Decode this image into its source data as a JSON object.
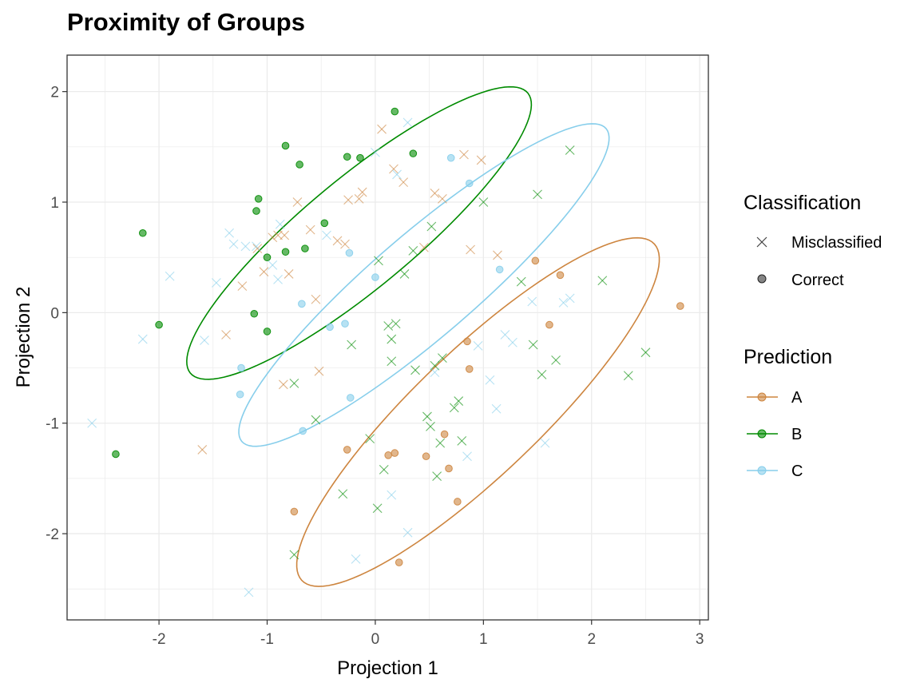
{
  "chart_data": {
    "type": "scatter",
    "title": "Proximity of Groups",
    "xlabel": "Projection 1",
    "ylabel": "Projection 2",
    "xlim": [
      -2.85,
      3.08
    ],
    "ylim": [
      -2.78,
      2.33
    ],
    "x_ticks": [
      -2,
      -1,
      0,
      1,
      2,
      3
    ],
    "y_ticks": [
      -2,
      -1,
      0,
      1,
      2
    ],
    "x_tick_labels": [
      "-2",
      "-1",
      "0",
      "1",
      "2",
      "3"
    ],
    "y_tick_labels": [
      "-2",
      "-1",
      "0",
      "1",
      "2"
    ],
    "grid": true,
    "legend_position": "right",
    "colors": {
      "A": "#CD853F",
      "B": "#008B00",
      "C": "#87CEEB"
    },
    "legends": {
      "classification": {
        "title": "Classification",
        "items": [
          "Misclassified",
          "Correct"
        ]
      },
      "prediction": {
        "title": "Prediction",
        "items": [
          "A",
          "B",
          "C"
        ]
      }
    },
    "ellipses": [
      {
        "group": "B",
        "center": [
          -0.15,
          0.72
        ],
        "rx": 2.01,
        "ry": 0.5,
        "angle": 39
      },
      {
        "group": "C",
        "center": [
          0.45,
          0.25
        ],
        "rx": 2.2,
        "ry": 0.47,
        "angle": 40
      },
      {
        "group": "A",
        "center": [
          0.95,
          -0.9
        ],
        "rx": 2.23,
        "ry": 0.57,
        "angle": 43
      }
    ],
    "series": [
      {
        "name": "Correct",
        "prediction": "B",
        "marker": "circle",
        "points": [
          [
            -2.15,
            0.72
          ],
          [
            -2.0,
            -0.11
          ],
          [
            -2.4,
            -1.28
          ],
          [
            -1.12,
            -0.01
          ],
          [
            -1.08,
            1.03
          ],
          [
            -1.1,
            0.92
          ],
          [
            -1.0,
            0.5
          ],
          [
            -1.0,
            -0.17
          ],
          [
            -0.83,
            1.51
          ],
          [
            -0.83,
            0.55
          ],
          [
            -0.7,
            1.34
          ],
          [
            -0.65,
            0.58
          ],
          [
            -0.47,
            0.81
          ],
          [
            -0.26,
            1.41
          ],
          [
            -0.14,
            1.4
          ],
          [
            0.18,
            1.82
          ],
          [
            0.35,
            1.44
          ]
        ]
      },
      {
        "name": "Correct",
        "prediction": "C",
        "marker": "circle",
        "points": [
          [
            -1.24,
            -0.5
          ],
          [
            -1.25,
            -0.74
          ],
          [
            -0.68,
            0.08
          ],
          [
            -0.67,
            -1.07
          ],
          [
            -0.42,
            -0.13
          ],
          [
            -0.28,
            -0.1
          ],
          [
            -0.24,
            0.54
          ],
          [
            -0.23,
            -0.77
          ],
          [
            0.0,
            0.32
          ],
          [
            0.7,
            1.4
          ],
          [
            0.87,
            1.17
          ],
          [
            1.15,
            0.39
          ]
        ]
      },
      {
        "name": "Correct",
        "prediction": "A",
        "marker": "circle",
        "points": [
          [
            -0.75,
            -1.8
          ],
          [
            -0.26,
            -1.24
          ],
          [
            0.12,
            -1.29
          ],
          [
            0.18,
            -1.27
          ],
          [
            0.22,
            -2.26
          ],
          [
            0.47,
            -1.3
          ],
          [
            0.64,
            -1.1
          ],
          [
            0.68,
            -1.41
          ],
          [
            0.76,
            -1.71
          ],
          [
            0.85,
            -0.26
          ],
          [
            0.87,
            -0.51
          ],
          [
            1.48,
            0.47
          ],
          [
            1.61,
            -0.11
          ],
          [
            1.71,
            0.34
          ],
          [
            2.82,
            0.06
          ]
        ]
      },
      {
        "name": "Misclassified",
        "prediction": "A",
        "marker": "x",
        "points": [
          [
            -1.6,
            -1.24
          ],
          [
            -1.38,
            -0.2
          ],
          [
            -1.23,
            0.24
          ],
          [
            -1.09,
            0.58
          ],
          [
            -1.03,
            0.37
          ],
          [
            -0.95,
            0.68
          ],
          [
            -0.9,
            0.7
          ],
          [
            -0.85,
            -0.65
          ],
          [
            -0.84,
            0.7
          ],
          [
            -0.8,
            0.35
          ],
          [
            -0.72,
            1.0
          ],
          [
            -0.6,
            0.75
          ],
          [
            -0.55,
            0.12
          ],
          [
            -0.52,
            -0.53
          ],
          [
            -0.35,
            0.65
          ],
          [
            -0.28,
            0.62
          ],
          [
            -0.25,
            1.02
          ],
          [
            -0.15,
            1.03
          ],
          [
            -0.12,
            1.09
          ],
          [
            0.06,
            1.66
          ],
          [
            0.17,
            1.3
          ],
          [
            0.26,
            1.18
          ],
          [
            0.45,
            0.59
          ],
          [
            0.55,
            1.08
          ],
          [
            0.62,
            1.03
          ],
          [
            0.82,
            1.43
          ],
          [
            0.88,
            0.57
          ],
          [
            0.98,
            1.38
          ],
          [
            1.13,
            0.52
          ]
        ]
      },
      {
        "name": "Misclassified",
        "prediction": "B",
        "marker": "x",
        "points": [
          [
            -0.75,
            -2.19
          ],
          [
            -0.75,
            -0.64
          ],
          [
            -0.55,
            -0.97
          ],
          [
            -0.3,
            -1.64
          ],
          [
            -0.22,
            -0.29
          ],
          [
            -0.05,
            -1.14
          ],
          [
            0.02,
            -1.77
          ],
          [
            0.03,
            0.47
          ],
          [
            0.08,
            -1.42
          ],
          [
            0.12,
            -0.12
          ],
          [
            0.15,
            -0.24
          ],
          [
            0.15,
            -0.44
          ],
          [
            0.19,
            -0.1
          ],
          [
            0.27,
            0.35
          ],
          [
            0.35,
            0.56
          ],
          [
            0.37,
            -0.52
          ],
          [
            0.48,
            -0.94
          ],
          [
            0.51,
            -1.03
          ],
          [
            0.52,
            0.78
          ],
          [
            0.55,
            -0.48
          ],
          [
            0.57,
            -1.48
          ],
          [
            0.6,
            -1.18
          ],
          [
            0.62,
            -0.41
          ],
          [
            0.73,
            -0.86
          ],
          [
            0.77,
            -0.8
          ],
          [
            0.8,
            -1.16
          ],
          [
            1.0,
            1.0
          ],
          [
            1.35,
            0.28
          ],
          [
            1.46,
            -0.29
          ],
          [
            1.5,
            1.07
          ],
          [
            1.54,
            -0.56
          ],
          [
            1.67,
            -0.43
          ],
          [
            1.8,
            1.47
          ],
          [
            2.1,
            0.29
          ],
          [
            2.34,
            -0.57
          ],
          [
            2.5,
            -0.36
          ]
        ]
      },
      {
        "name": "Misclassified",
        "prediction": "C",
        "marker": "x",
        "points": [
          [
            -2.62,
            -1.0
          ],
          [
            -2.15,
            -0.24
          ],
          [
            -1.9,
            0.33
          ],
          [
            -1.58,
            -0.25
          ],
          [
            -1.47,
            0.27
          ],
          [
            -1.35,
            0.72
          ],
          [
            -1.31,
            0.62
          ],
          [
            -1.2,
            0.6
          ],
          [
            -1.17,
            -2.53
          ],
          [
            -1.1,
            0.6
          ],
          [
            -0.95,
            0.43
          ],
          [
            -0.9,
            0.3
          ],
          [
            -0.88,
            0.8
          ],
          [
            -0.45,
            0.7
          ],
          [
            -0.18,
            -2.23
          ],
          [
            0.0,
            1.45
          ],
          [
            0.15,
            -1.65
          ],
          [
            0.2,
            1.25
          ],
          [
            0.3,
            1.72
          ],
          [
            0.3,
            -1.99
          ],
          [
            0.55,
            -0.54
          ],
          [
            0.85,
            -1.3
          ],
          [
            0.95,
            -0.3
          ],
          [
            1.06,
            -0.61
          ],
          [
            1.12,
            -0.87
          ],
          [
            1.2,
            -0.2
          ],
          [
            1.27,
            -0.27
          ],
          [
            1.45,
            0.1
          ],
          [
            1.57,
            -1.18
          ],
          [
            1.74,
            0.09
          ],
          [
            1.8,
            0.13
          ]
        ]
      }
    ]
  }
}
